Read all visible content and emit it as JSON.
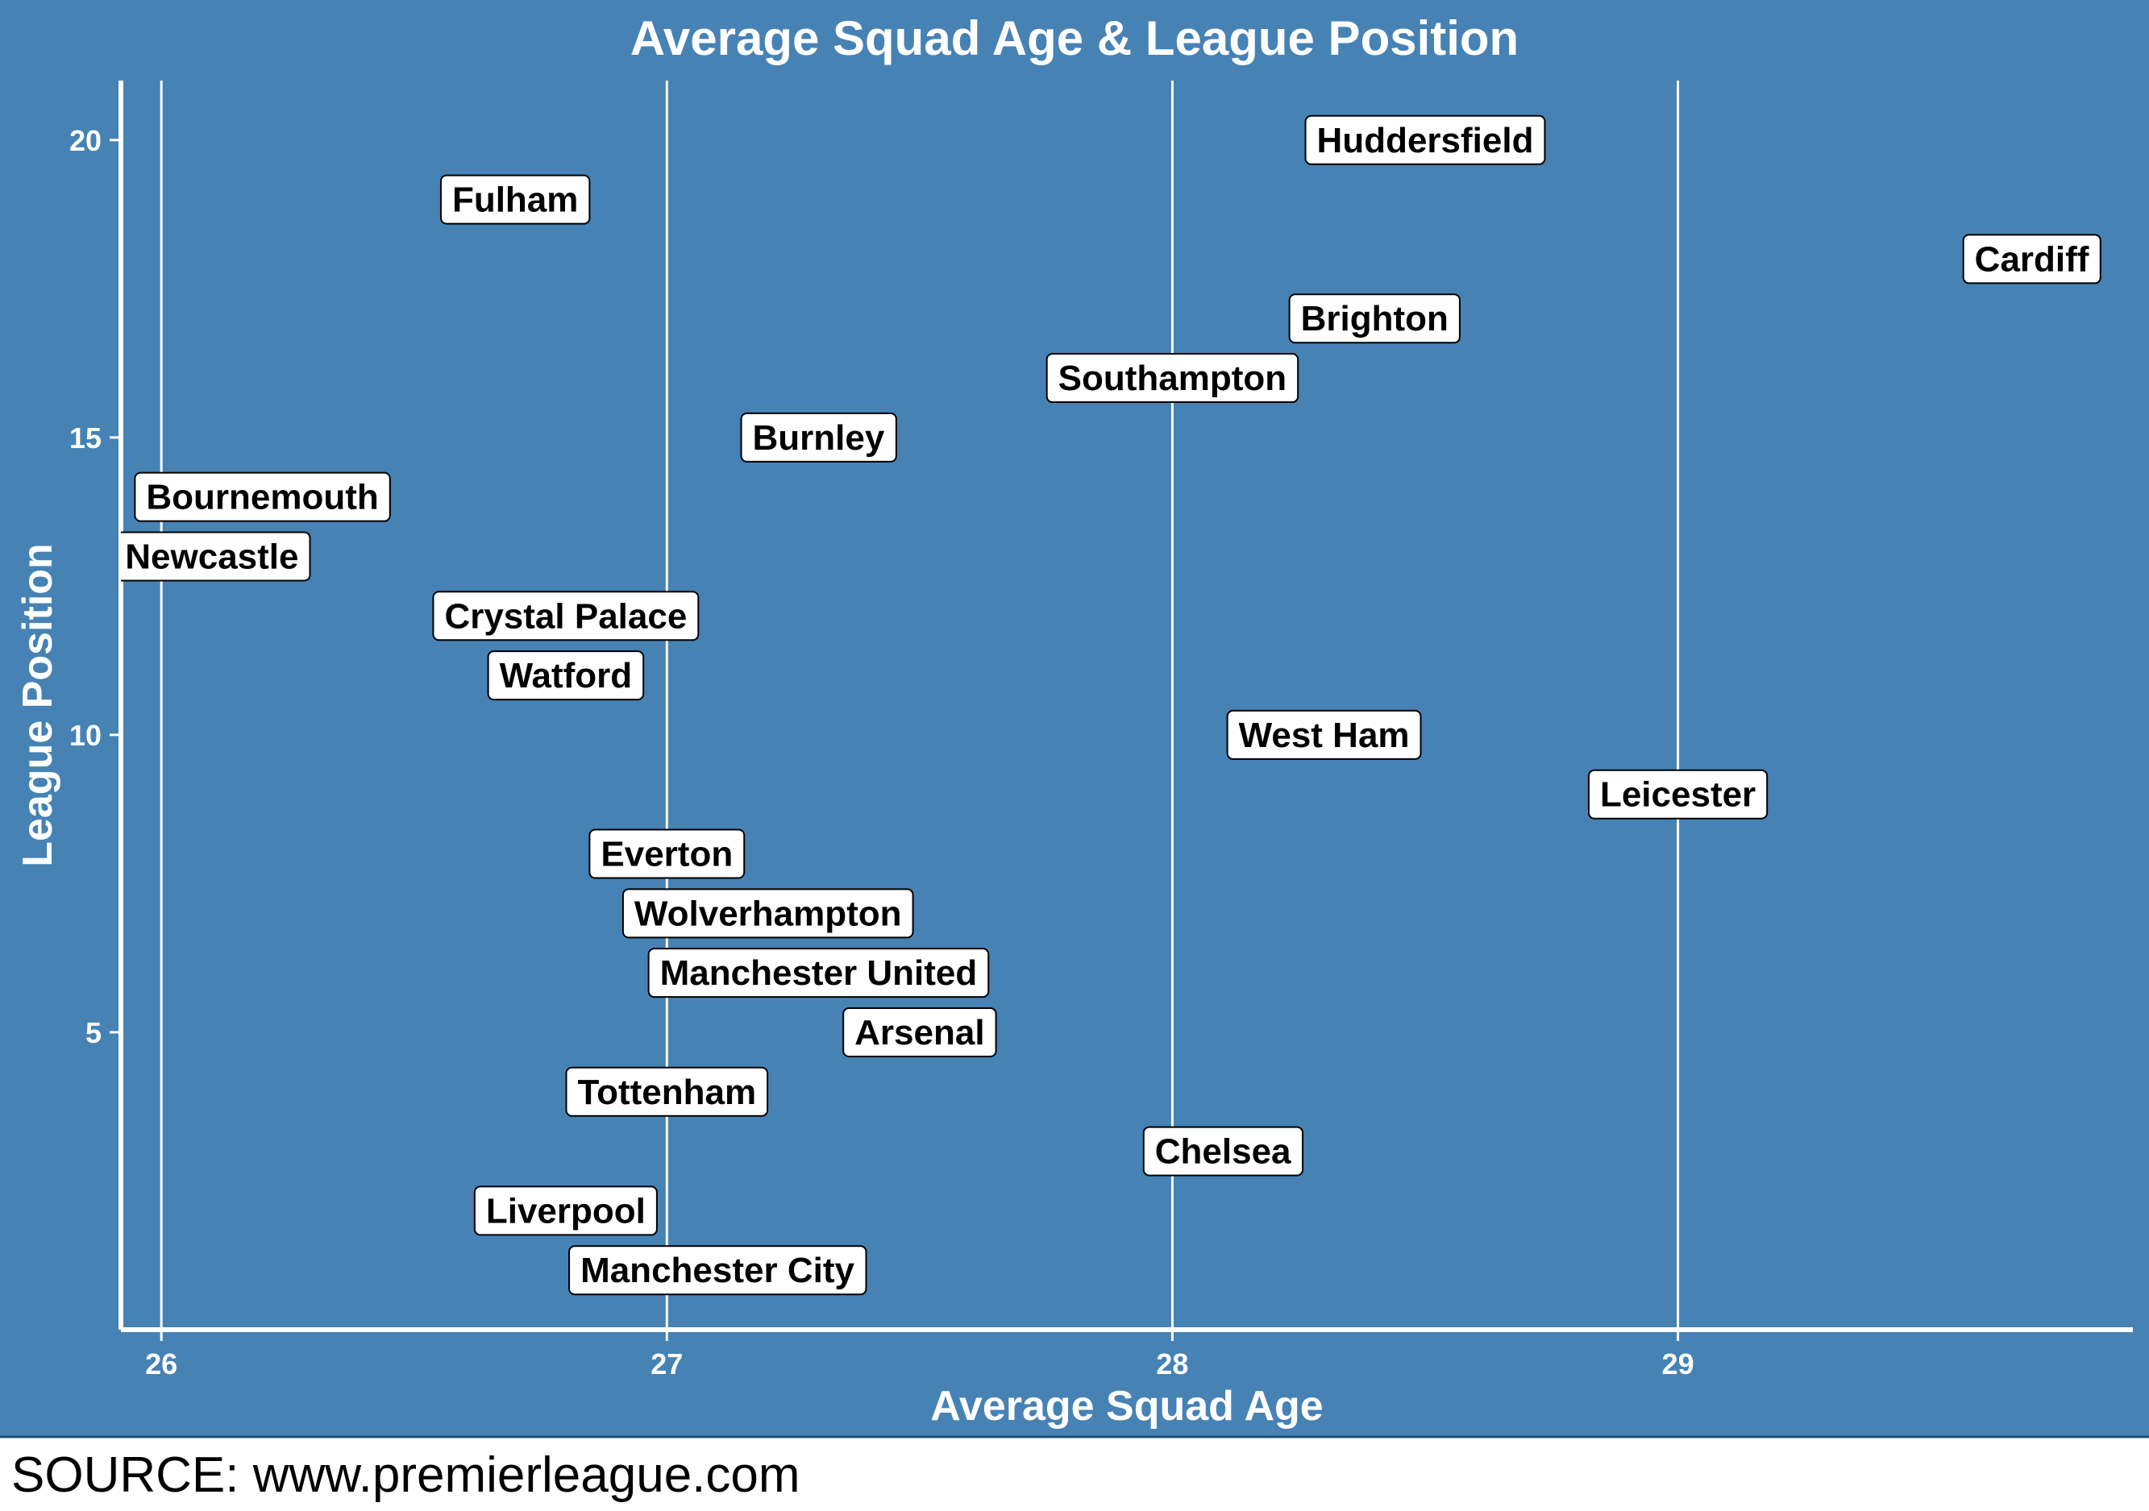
{
  "colors": {
    "panel_background": "#4682B4",
    "foreground": "#FFFFFF",
    "label_fill": "#FFFFFF",
    "label_text": "#000000",
    "label_border": "#000000"
  },
  "caption": "SOURCE: www.premierleague.com",
  "chart_data": {
    "type": "scatter",
    "title": "Average Squad Age & League Position",
    "xlabel": "Average Squad Age",
    "ylabel": "League Position",
    "xlim": [
      25.92,
      29.9
    ],
    "ylim": [
      0,
      21
    ],
    "x_ticks": [
      26,
      27,
      28,
      29
    ],
    "y_ticks": [
      5,
      10,
      15,
      20
    ],
    "grid": "vertical major gridlines only",
    "points": [
      {
        "label": "Manchester City",
        "x": 27.1,
        "y": 1
      },
      {
        "label": "Liverpool",
        "x": 26.8,
        "y": 2
      },
      {
        "label": "Chelsea",
        "x": 28.1,
        "y": 3
      },
      {
        "label": "Tottenham",
        "x": 27.0,
        "y": 4
      },
      {
        "label": "Arsenal",
        "x": 27.5,
        "y": 5
      },
      {
        "label": "Manchester United",
        "x": 27.3,
        "y": 6
      },
      {
        "label": "Wolverhampton",
        "x": 27.2,
        "y": 7
      },
      {
        "label": "Everton",
        "x": 27.0,
        "y": 8
      },
      {
        "label": "Leicester",
        "x": 29.0,
        "y": 9
      },
      {
        "label": "West Ham",
        "x": 28.3,
        "y": 10
      },
      {
        "label": "Watford",
        "x": 26.8,
        "y": 11
      },
      {
        "label": "Crystal Palace",
        "x": 26.8,
        "y": 12
      },
      {
        "label": "Newcastle",
        "x": 26.1,
        "y": 13
      },
      {
        "label": "Bournemouth",
        "x": 26.2,
        "y": 14
      },
      {
        "label": "Burnley",
        "x": 27.3,
        "y": 15
      },
      {
        "label": "Southampton",
        "x": 28.0,
        "y": 16
      },
      {
        "label": "Brighton",
        "x": 28.4,
        "y": 17
      },
      {
        "label": "Cardiff",
        "x": 29.7,
        "y": 18
      },
      {
        "label": "Fulham",
        "x": 26.7,
        "y": 19
      },
      {
        "label": "Huddersfield",
        "x": 28.5,
        "y": 20
      }
    ]
  }
}
